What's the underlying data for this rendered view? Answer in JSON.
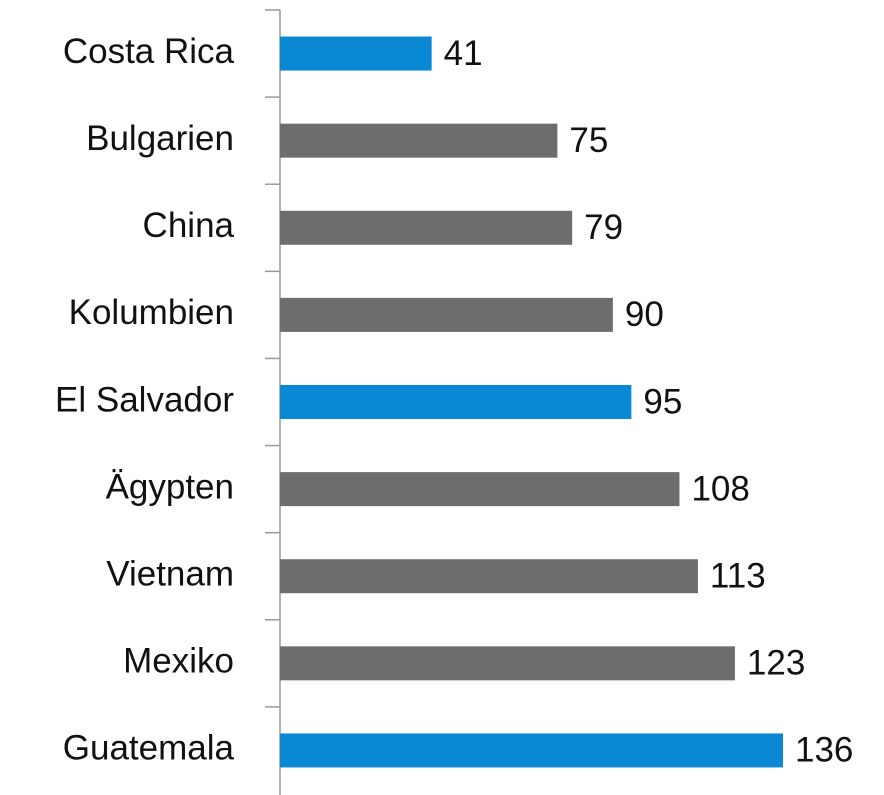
{
  "chart_data": {
    "type": "bar",
    "orientation": "horizontal",
    "categories": [
      "Costa Rica",
      "Bulgarien",
      "China",
      "Kolumbien",
      "El Salvador",
      "Ägypten",
      "Vietnam",
      "Mexiko",
      "Guatemala"
    ],
    "values": [
      41,
      75,
      79,
      90,
      95,
      108,
      113,
      123,
      136
    ],
    "colors": [
      "#0a88d4",
      "#6d6d6d",
      "#6d6d6d",
      "#6d6d6d",
      "#0a88d4",
      "#6d6d6d",
      "#6d6d6d",
      "#6d6d6d",
      "#0a88d4"
    ]
  }
}
